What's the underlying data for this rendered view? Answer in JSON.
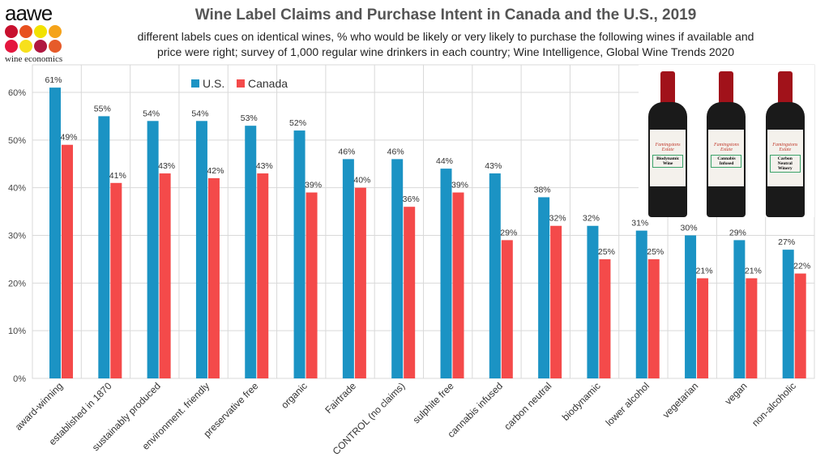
{
  "logo": {
    "brand": "aawe",
    "sub": "wine economics",
    "dot_colors": [
      "#c8102e",
      "#e8501e",
      "#f2e200",
      "#f5a31a",
      "#e4173e",
      "#f7e01c",
      "#b0173f",
      "#e65b2a"
    ]
  },
  "header": {
    "title": "Wine Label Claims and Purchase Intent in Canada and the U.S., 2019",
    "subtitle_line1": "different labels cues on identical wines, % who would be likely or very likely to purchase the following wines if available and",
    "subtitle_line2": "price were right; survey of 1,000 regular wine drinkers in each country; Wine Intelligence, Global Wine Trends 2020"
  },
  "bottles": [
    {
      "estate": "Famingstons Estate",
      "claim": "Biodynamic Wine"
    },
    {
      "estate": "Famingstons Estate",
      "claim": "Cannabis Infused"
    },
    {
      "estate": "Famingstons Estate",
      "claim": "Carbon Neutral Winery"
    }
  ],
  "chart_data": {
    "type": "bar",
    "title": "Wine Label Claims and Purchase Intent in Canada and the U.S., 2019",
    "xlabel": "",
    "ylabel": "",
    "ylim": [
      0,
      60
    ],
    "yticks": [
      "0%",
      "10%",
      "20%",
      "30%",
      "40%",
      "50%",
      "60%"
    ],
    "grid": true,
    "legend": "top-left",
    "categories": [
      "award-winning",
      "established in 1870",
      "sustainably produced",
      "environment. friendly",
      "preservative free",
      "organic",
      "Fairtrade",
      "CONTROL (no claims)",
      "sulphite free",
      "cannabis infused",
      "carbon neutral",
      "biodynamic",
      "lower alcohol",
      "vegetarian",
      "vegan",
      "non-alcoholic"
    ],
    "series": [
      {
        "name": "U.S.",
        "color": "#1b93c4",
        "values": [
          61,
          55,
          54,
          54,
          53,
          52,
          46,
          46,
          44,
          43,
          38,
          32,
          31,
          30,
          29,
          27
        ]
      },
      {
        "name": "Canada",
        "color": "#f44a4a",
        "values": [
          49,
          41,
          43,
          42,
          43,
          39,
          40,
          36,
          39,
          29,
          32,
          25,
          25,
          21,
          21,
          22
        ]
      }
    ]
  }
}
